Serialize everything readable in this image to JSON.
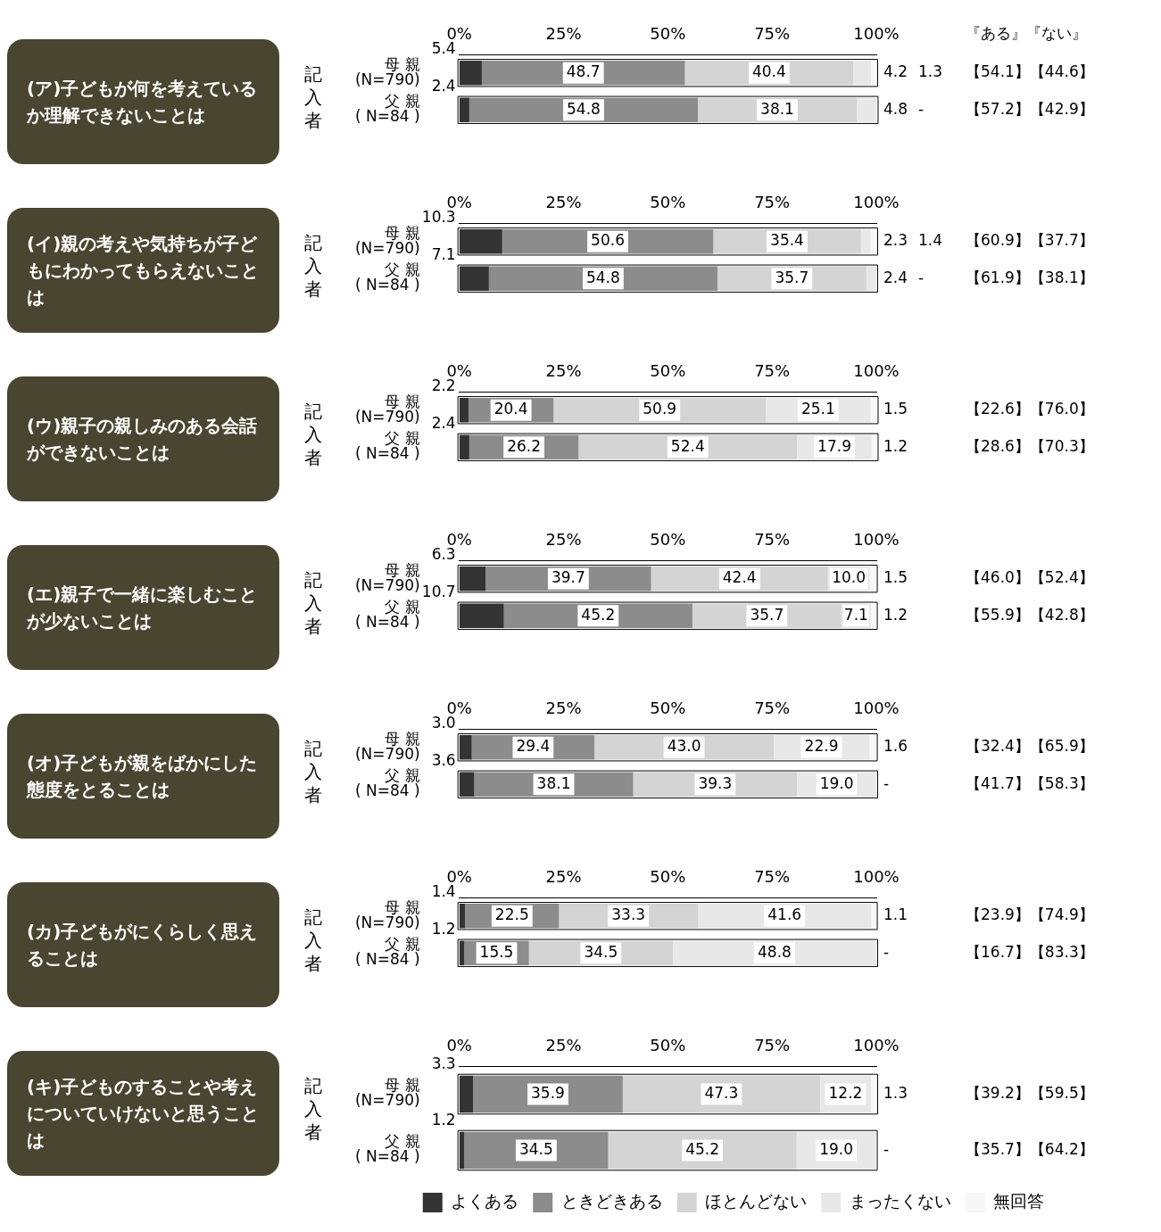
{
  "chart_data": [
    {
      "type": "bar",
      "orientation": "horizontal",
      "stacked": true,
      "title": "(ア)子どもが何を考えているか理解できないことは",
      "ylabel": "記入者",
      "categories": [
        "母 親(N=790)",
        "父 親( N=84 )"
      ],
      "xlim": [
        0,
        100
      ],
      "xticks": [
        {
          "value": 0,
          "label": "0%"
        },
        {
          "value": 25,
          "label": "25%"
        },
        {
          "value": 50,
          "label": "50%"
        },
        {
          "value": 75,
          "label": "75%"
        },
        {
          "value": 100,
          "label": "100%"
        }
      ],
      "annotations": [
        "『ある』『ない』",
        "【54.1】【44.6】",
        "【57.2】【42.9】"
      ],
      "series": [
        {
          "color": "#333333",
          "values": [
            5.4,
            2.4
          ],
          "value_labels": [
            "5.4",
            "2.4"
          ]
        },
        {
          "color": "#8c8c8c",
          "values": [
            48.7,
            54.8
          ],
          "value_labels": [
            "48.7",
            "54.8"
          ]
        },
        {
          "color": "#d4d4d4",
          "values": [
            40.4,
            38.1
          ],
          "value_labels": [
            "40.4",
            "38.1"
          ]
        },
        {
          "color": "#e8e8e8",
          "values": [
            4.2,
            4.8
          ],
          "value_labels": [
            "4.2",
            "4.8"
          ]
        },
        {
          "color": "#f7f7f7",
          "values": [
            1.3,
            0
          ],
          "value_labels": [
            "1.3",
            "-"
          ]
        }
      ]
    },
    {
      "type": "bar",
      "orientation": "horizontal",
      "stacked": true,
      "title": "(イ)親の考えや気持ちが子どもにわかってもらえないことは",
      "ylabel": "記入者",
      "categories": [
        "母 親(N=790)",
        "父 親( N=84 )"
      ],
      "xlim": [
        0,
        100
      ],
      "xticks": [
        {
          "value": 0,
          "label": "0%"
        },
        {
          "value": 25,
          "label": "25%"
        },
        {
          "value": 50,
          "label": "50%"
        },
        {
          "value": 75,
          "label": "75%"
        },
        {
          "value": 100,
          "label": "100%"
        }
      ],
      "annotations": [
        "【60.9】【37.7】",
        "【61.9】【38.1】"
      ],
      "series": [
        {
          "color": "#333333",
          "values": [
            10.3,
            7.1
          ],
          "value_labels": [
            "10.3",
            "7.1"
          ]
        },
        {
          "color": "#8c8c8c",
          "values": [
            50.6,
            54.8
          ],
          "value_labels": [
            "50.6",
            "54.8"
          ]
        },
        {
          "color": "#d4d4d4",
          "values": [
            35.4,
            35.7
          ],
          "value_labels": [
            "35.4",
            "35.7"
          ]
        },
        {
          "color": "#e8e8e8",
          "values": [
            2.3,
            2.4
          ],
          "value_labels": [
            "2.3",
            "2.4"
          ]
        },
        {
          "color": "#f7f7f7",
          "values": [
            1.4,
            0
          ],
          "value_labels": [
            "1.4",
            "-"
          ]
        }
      ]
    },
    {
      "type": "bar",
      "orientation": "horizontal",
      "stacked": true,
      "title": "(ウ)親子の親しみのある会話ができないことは",
      "ylabel": "記入者",
      "categories": [
        "母 親(N=790)",
        "父 親( N=84 )"
      ],
      "xlim": [
        0,
        100
      ],
      "xticks": [
        {
          "value": 0,
          "label": "0%"
        },
        {
          "value": 25,
          "label": "25%"
        },
        {
          "value": 50,
          "label": "50%"
        },
        {
          "value": 75,
          "label": "75%"
        },
        {
          "value": 100,
          "label": "100%"
        }
      ],
      "annotations": [
        "【22.6】【76.0】",
        "【28.6】【70.3】"
      ],
      "series": [
        {
          "color": "#333333",
          "values": [
            2.2,
            2.4
          ],
          "value_labels": [
            "2.2",
            "2.4"
          ]
        },
        {
          "color": "#8c8c8c",
          "values": [
            20.4,
            26.2
          ],
          "value_labels": [
            "20.4",
            "26.2"
          ]
        },
        {
          "color": "#d4d4d4",
          "values": [
            50.9,
            52.4
          ],
          "value_labels": [
            "50.9",
            "52.4"
          ]
        },
        {
          "color": "#e8e8e8",
          "values": [
            25.1,
            17.9
          ],
          "value_labels": [
            "25.1",
            "17.9"
          ]
        },
        {
          "color": "#f7f7f7",
          "values": [
            1.5,
            1.2
          ],
          "value_labels": [
            "1.5",
            "1.2"
          ]
        }
      ]
    },
    {
      "type": "bar",
      "orientation": "horizontal",
      "stacked": true,
      "title": "(エ)親子で一緒に楽しむことが少ないことは",
      "ylabel": "記入者",
      "categories": [
        "母 親(N=790)",
        "父 親( N=84 )"
      ],
      "xlim": [
        0,
        100
      ],
      "xticks": [
        {
          "value": 0,
          "label": "0%"
        },
        {
          "value": 25,
          "label": "25%"
        },
        {
          "value": 50,
          "label": "50%"
        },
        {
          "value": 75,
          "label": "75%"
        },
        {
          "value": 100,
          "label": "100%"
        }
      ],
      "annotations": [
        "【46.0】【52.4】",
        "【55.9】【42.8】"
      ],
      "series": [
        {
          "color": "#333333",
          "values": [
            6.3,
            10.7
          ],
          "value_labels": [
            "6.3",
            "10.7"
          ]
        },
        {
          "color": "#8c8c8c",
          "values": [
            39.7,
            45.2
          ],
          "value_labels": [
            "39.7",
            "45.2"
          ]
        },
        {
          "color": "#d4d4d4",
          "values": [
            42.4,
            35.7
          ],
          "value_labels": [
            "42.4",
            "35.7"
          ]
        },
        {
          "color": "#e8e8e8",
          "values": [
            10.0,
            7.1
          ],
          "value_labels": [
            "10.0",
            "7.1"
          ]
        },
        {
          "color": "#f7f7f7",
          "values": [
            1.5,
            1.2
          ],
          "value_labels": [
            "1.5",
            "1.2"
          ]
        }
      ]
    },
    {
      "type": "bar",
      "orientation": "horizontal",
      "stacked": true,
      "title": "(オ)子どもが親をばかにした態度をとることは",
      "ylabel": "記入者",
      "categories": [
        "母 親(N=790)",
        "父 親( N=84 )"
      ],
      "xlim": [
        0,
        100
      ],
      "xticks": [
        {
          "value": 0,
          "label": "0%"
        },
        {
          "value": 25,
          "label": "25%"
        },
        {
          "value": 50,
          "label": "50%"
        },
        {
          "value": 75,
          "label": "75%"
        },
        {
          "value": 100,
          "label": "100%"
        }
      ],
      "annotations": [
        "【32.4】【65.9】",
        "【41.7】【58.3】"
      ],
      "series": [
        {
          "color": "#333333",
          "values": [
            3.0,
            3.6
          ],
          "value_labels": [
            "3.0",
            "3.6"
          ]
        },
        {
          "color": "#8c8c8c",
          "values": [
            29.4,
            38.1
          ],
          "value_labels": [
            "29.4",
            "38.1"
          ]
        },
        {
          "color": "#d4d4d4",
          "values": [
            43.0,
            39.3
          ],
          "value_labels": [
            "43.0",
            "39.3"
          ]
        },
        {
          "color": "#e8e8e8",
          "values": [
            22.9,
            19.0
          ],
          "value_labels": [
            "22.9",
            "19.0"
          ]
        },
        {
          "color": "#f7f7f7",
          "values": [
            1.6,
            0
          ],
          "value_labels": [
            "1.6",
            "-"
          ]
        }
      ]
    },
    {
      "type": "bar",
      "orientation": "horizontal",
      "stacked": true,
      "title": "(カ)子どもがにくらしく思えることは",
      "ylabel": "記入者",
      "categories": [
        "母 親(N=790)",
        "父 親( N=84 )"
      ],
      "xlim": [
        0,
        100
      ],
      "xticks": [
        {
          "value": 0,
          "label": "0%"
        },
        {
          "value": 25,
          "label": "25%"
        },
        {
          "value": 50,
          "label": "50%"
        },
        {
          "value": 75,
          "label": "75%"
        },
        {
          "value": 100,
          "label": "100%"
        }
      ],
      "annotations": [
        "【23.9】【74.9】",
        "【16.7】【83.3】"
      ],
      "series": [
        {
          "color": "#333333",
          "values": [
            1.4,
            1.2
          ],
          "value_labels": [
            "1.4",
            "1.2"
          ]
        },
        {
          "color": "#8c8c8c",
          "values": [
            22.5,
            15.5
          ],
          "value_labels": [
            "22.5",
            "15.5"
          ]
        },
        {
          "color": "#d4d4d4",
          "values": [
            33.3,
            34.5
          ],
          "value_labels": [
            "33.3",
            "34.5"
          ]
        },
        {
          "color": "#e8e8e8",
          "values": [
            41.6,
            48.8
          ],
          "value_labels": [
            "41.6",
            "48.8"
          ]
        },
        {
          "color": "#f7f7f7",
          "values": [
            1.1,
            0
          ],
          "value_labels": [
            "1.1",
            "-"
          ]
        }
      ]
    },
    {
      "type": "bar",
      "orientation": "horizontal",
      "stacked": true,
      "title": "(キ)子どものすることや考えについていけないと思うことは",
      "ylabel": "記入者",
      "categories": [
        "母 親(N=790)",
        "父 親( N=84 )"
      ],
      "xlim": [
        0,
        100
      ],
      "xticks": [
        {
          "value": 0,
          "label": "0%"
        },
        {
          "value": 25,
          "label": "25%"
        },
        {
          "value": 50,
          "label": "50%"
        },
        {
          "value": 75,
          "label": "75%"
        },
        {
          "value": 100,
          "label": "100%"
        }
      ],
      "legend": "bottom",
      "annotations": [
        "【39.2】【59.5】",
        "【35.7】【64.2】"
      ],
      "series": [
        {
          "name": "よくある",
          "color": "#333333",
          "values": [
            3.3,
            1.2
          ],
          "value_labels": [
            "3.3",
            "1.2"
          ]
        },
        {
          "name": "ときどきある",
          "color": "#8c8c8c",
          "values": [
            35.9,
            34.5
          ],
          "value_labels": [
            "35.9",
            "34.5"
          ]
        },
        {
          "name": "ほとんどない",
          "color": "#d4d4d4",
          "values": [
            47.3,
            45.2
          ],
          "value_labels": [
            "47.3",
            "45.2"
          ]
        },
        {
          "name": "まったくない",
          "color": "#e8e8e8",
          "values": [
            12.2,
            19.0
          ],
          "value_labels": [
            "12.2",
            "19.0"
          ]
        },
        {
          "name": "無回答",
          "color": "#f7f7f7",
          "values": [
            1.3,
            0
          ],
          "value_labels": [
            "1.3",
            "-"
          ]
        }
      ]
    }
  ]
}
